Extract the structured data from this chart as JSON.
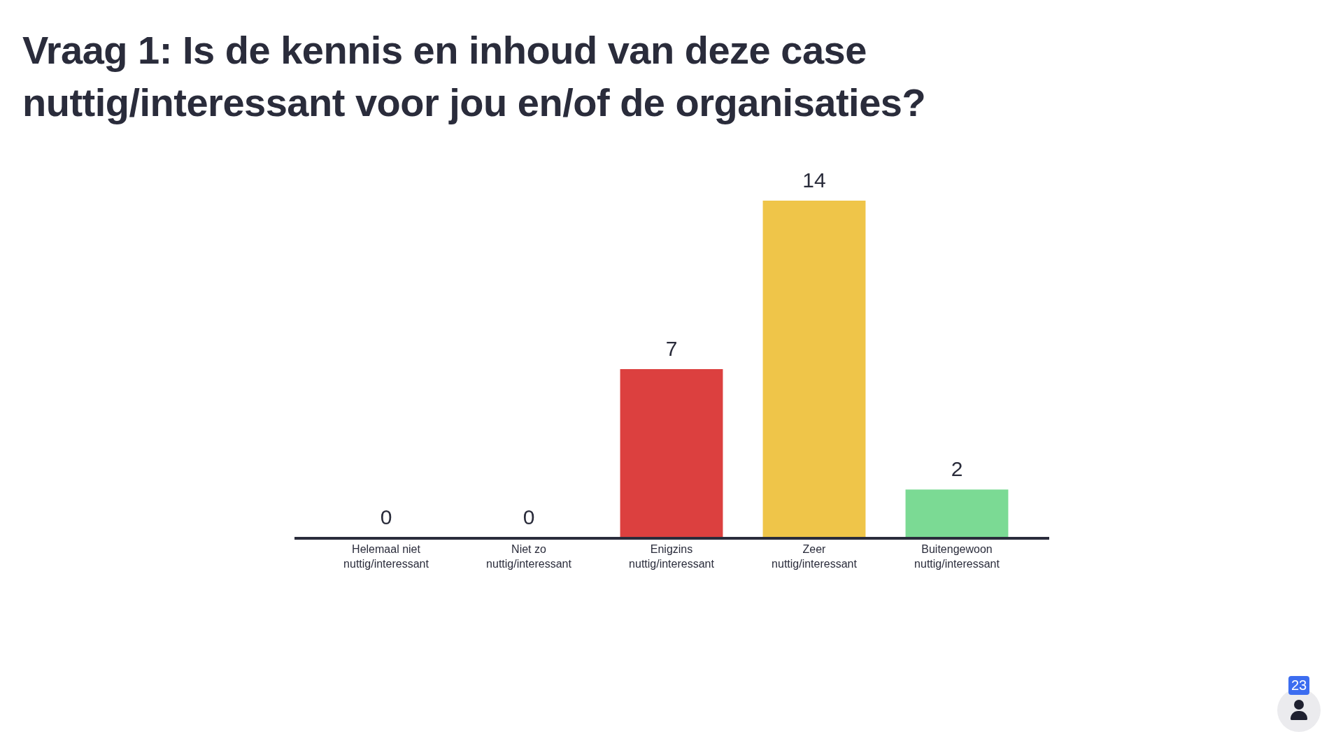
{
  "chart_data": {
    "type": "bar",
    "title": "Vraag 1: Is de kennis en inhoud van deze case nuttig/interessant voor jou en/of de organisaties?",
    "categories": [
      "Helemaal niet nuttig/interessant",
      "Niet zo nuttig/interessant",
      "Enigzins nuttig/interessant",
      "Zeer nuttig/interessant",
      "Buitengewoon nuttig/interessant"
    ],
    "values": [
      0,
      0,
      7,
      14,
      2
    ],
    "colors": [
      "#5769e7",
      "#ff80ab",
      "#dc403f",
      "#efc549",
      "#7bda94"
    ],
    "data_labels": true,
    "annotations": [
      "23"
    ]
  }
}
